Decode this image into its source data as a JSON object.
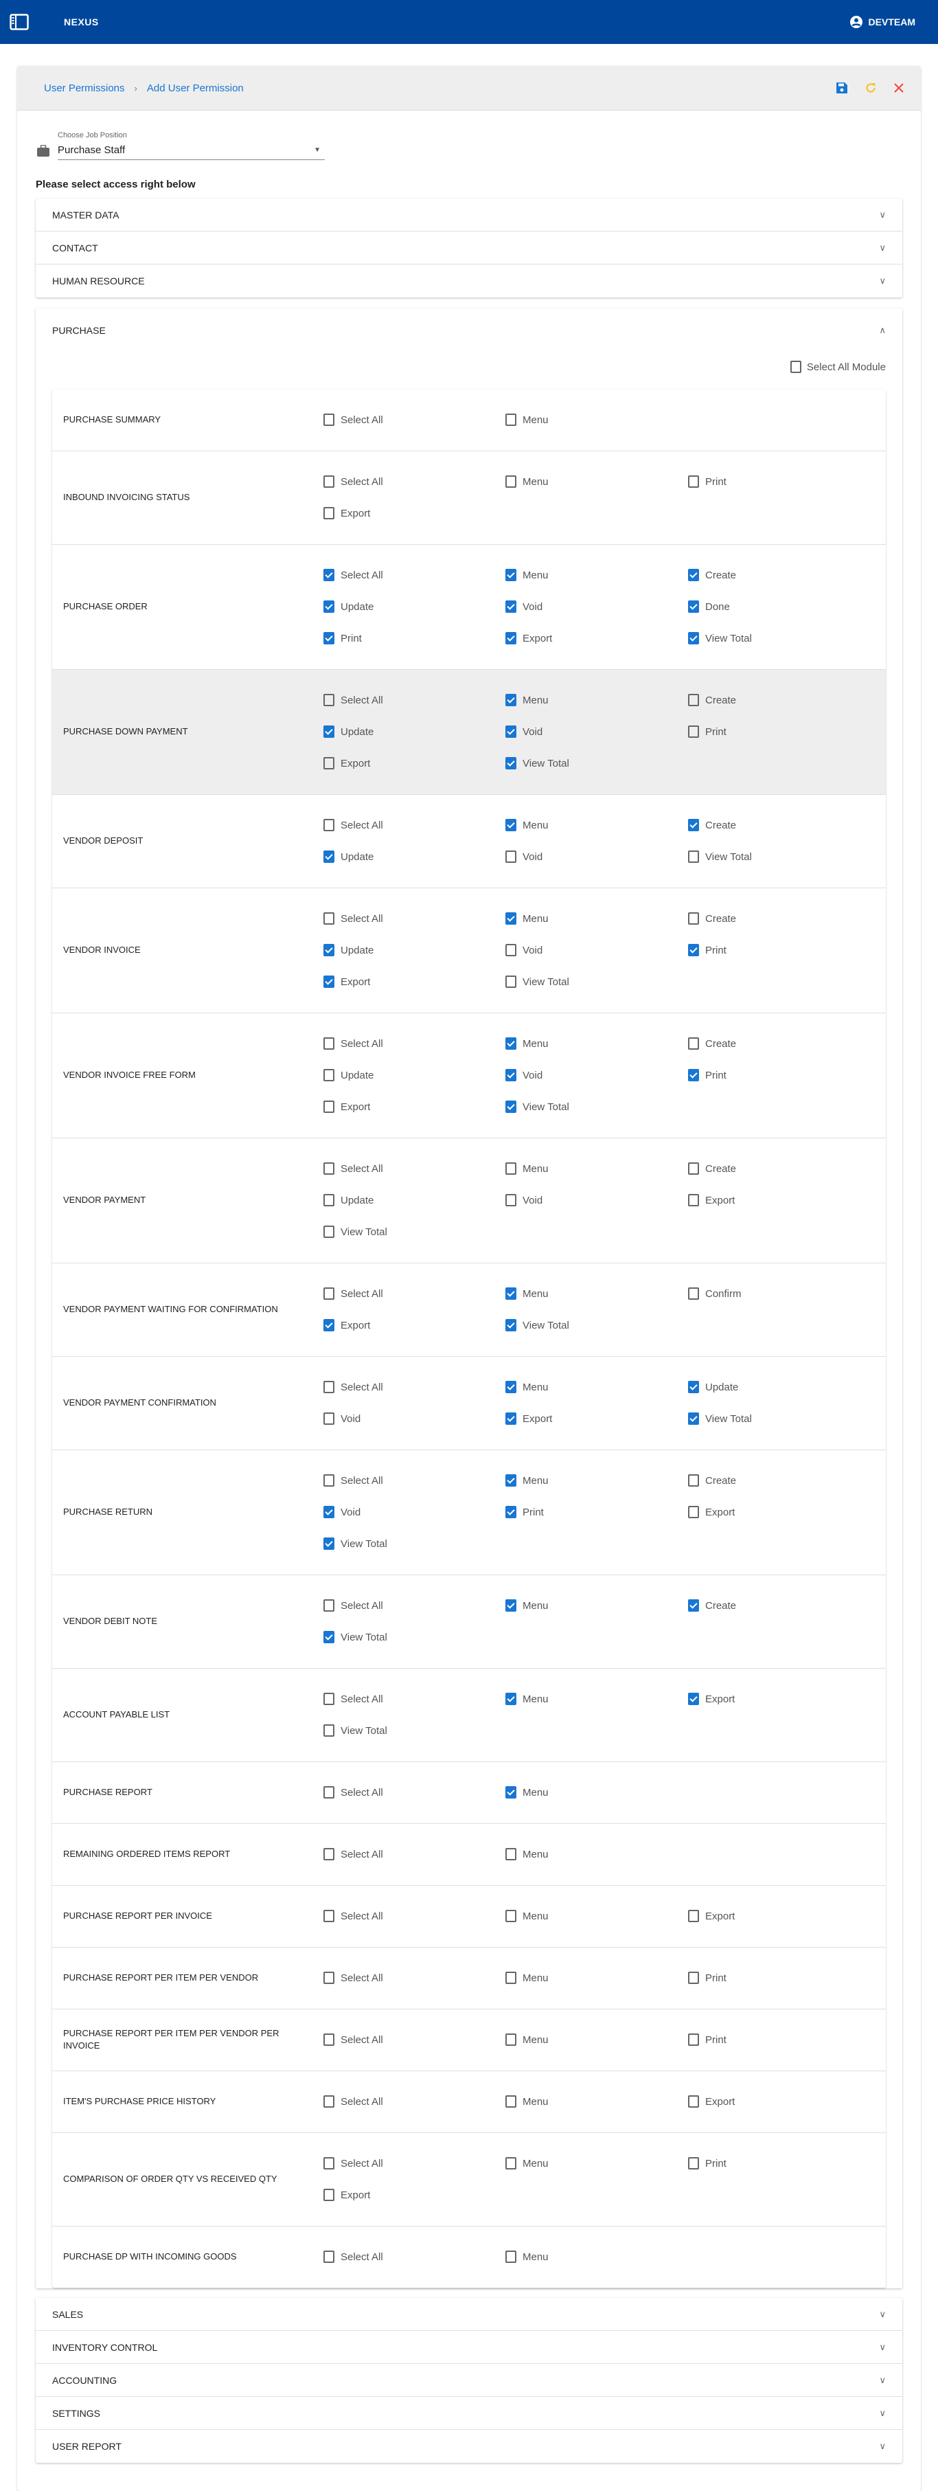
{
  "app": {
    "title": "NEXUS",
    "user": "DEVTEAM"
  },
  "breadcrumb": {
    "parent": "User Permissions",
    "current": "Add User Permission",
    "separator": "›"
  },
  "actions": {
    "save_icon": "save-icon",
    "refresh_icon": "refresh-icon",
    "close_icon": "close-icon",
    "colors": {
      "save": "#1976d2",
      "refresh": "#fbc02d",
      "close": "#f44336"
    }
  },
  "job": {
    "label": "Choose Job Position",
    "value": "Purchase Staff"
  },
  "instructions": "Please select access right below",
  "sections_top": [
    "MASTER DATA",
    "CONTACT",
    "HUMAN RESOURCE"
  ],
  "purchase": {
    "title": "PURCHASE",
    "select_all_module": {
      "label": "Select All Module",
      "checked": false
    },
    "rows": [
      {
        "name": "PURCHASE SUMMARY",
        "perms": [
          [
            "Select All",
            false
          ],
          [
            "Menu",
            false
          ]
        ]
      },
      {
        "name": "INBOUND INVOICING STATUS",
        "perms": [
          [
            "Select All",
            false
          ],
          [
            "Menu",
            false
          ],
          [
            "Print",
            false
          ],
          [
            "Export",
            false
          ]
        ]
      },
      {
        "name": "PURCHASE ORDER",
        "perms": [
          [
            "Select All",
            true
          ],
          [
            "Menu",
            true
          ],
          [
            "Create",
            true
          ],
          [
            "Update",
            true
          ],
          [
            "Void",
            true
          ],
          [
            "Done",
            true
          ],
          [
            "Print",
            true
          ],
          [
            "Export",
            true
          ],
          [
            "View Total",
            true
          ]
        ]
      },
      {
        "name": "PURCHASE DOWN PAYMENT",
        "highlighted": true,
        "perms": [
          [
            "Select All",
            false
          ],
          [
            "Menu",
            true
          ],
          [
            "Create",
            false
          ],
          [
            "Update",
            true
          ],
          [
            "Void",
            true
          ],
          [
            "Print",
            false
          ],
          [
            "Export",
            false
          ],
          [
            "View Total",
            true
          ]
        ]
      },
      {
        "name": "VENDOR DEPOSIT",
        "perms": [
          [
            "Select All",
            false
          ],
          [
            "Menu",
            true
          ],
          [
            "Create",
            true
          ],
          [
            "Update",
            true
          ],
          [
            "Void",
            false
          ],
          [
            "View Total",
            false
          ]
        ]
      },
      {
        "name": "VENDOR INVOICE",
        "perms": [
          [
            "Select All",
            false
          ],
          [
            "Menu",
            true
          ],
          [
            "Create",
            false
          ],
          [
            "Update",
            true
          ],
          [
            "Void",
            false
          ],
          [
            "Print",
            true
          ],
          [
            "Export",
            true
          ],
          [
            "View Total",
            false
          ]
        ]
      },
      {
        "name": "VENDOR INVOICE FREE FORM",
        "perms": [
          [
            "Select All",
            false
          ],
          [
            "Menu",
            true
          ],
          [
            "Create",
            false
          ],
          [
            "Update",
            false
          ],
          [
            "Void",
            true
          ],
          [
            "Print",
            true
          ],
          [
            "Export",
            false
          ],
          [
            "View Total",
            true
          ]
        ]
      },
      {
        "name": "VENDOR PAYMENT",
        "perms": [
          [
            "Select All",
            false
          ],
          [
            "Menu",
            false
          ],
          [
            "Create",
            false
          ],
          [
            "Update",
            false
          ],
          [
            "Void",
            false
          ],
          [
            "Export",
            false
          ],
          [
            "View Total",
            false
          ]
        ]
      },
      {
        "name": "VENDOR PAYMENT WAITING FOR CONFIRMATION",
        "perms": [
          [
            "Select All",
            false
          ],
          [
            "Menu",
            true
          ],
          [
            "Confirm",
            false
          ],
          [
            "Export",
            true
          ],
          [
            "View Total",
            true
          ]
        ]
      },
      {
        "name": "VENDOR PAYMENT CONFIRMATION",
        "perms": [
          [
            "Select All",
            false
          ],
          [
            "Menu",
            true
          ],
          [
            "Update",
            true
          ],
          [
            "Void",
            false
          ],
          [
            "Export",
            true
          ],
          [
            "View Total",
            true
          ]
        ]
      },
      {
        "name": "PURCHASE RETURN",
        "perms": [
          [
            "Select All",
            false
          ],
          [
            "Menu",
            true
          ],
          [
            "Create",
            false
          ],
          [
            "Void",
            true
          ],
          [
            "Print",
            true
          ],
          [
            "Export",
            false
          ],
          [
            "View Total",
            true
          ]
        ]
      },
      {
        "name": "VENDOR DEBIT NOTE",
        "perms": [
          [
            "Select All",
            false
          ],
          [
            "Menu",
            true
          ],
          [
            "Create",
            true
          ],
          [
            "View Total",
            true
          ]
        ]
      },
      {
        "name": "ACCOUNT PAYABLE LIST",
        "perms": [
          [
            "Select All",
            false
          ],
          [
            "Menu",
            true
          ],
          [
            "Export",
            true
          ],
          [
            "View Total",
            false
          ]
        ]
      },
      {
        "name": "PURCHASE REPORT",
        "perms": [
          [
            "Select All",
            false
          ],
          [
            "Menu",
            true
          ]
        ]
      },
      {
        "name": "REMAINING ORDERED ITEMS REPORT",
        "perms": [
          [
            "Select All",
            false
          ],
          [
            "Menu",
            false
          ]
        ]
      },
      {
        "name": "PURCHASE REPORT PER INVOICE",
        "perms": [
          [
            "Select All",
            false
          ],
          [
            "Menu",
            false
          ],
          [
            "Export",
            false
          ]
        ]
      },
      {
        "name": "PURCHASE REPORT PER ITEM PER VENDOR",
        "perms": [
          [
            "Select All",
            false
          ],
          [
            "Menu",
            false
          ],
          [
            "Print",
            false
          ]
        ]
      },
      {
        "name": "PURCHASE REPORT PER ITEM PER VENDOR PER INVOICE",
        "perms": [
          [
            "Select All",
            false
          ],
          [
            "Menu",
            false
          ],
          [
            "Print",
            false
          ]
        ]
      },
      {
        "name": "ITEM'S PURCHASE PRICE HISTORY",
        "perms": [
          [
            "Select All",
            false
          ],
          [
            "Menu",
            false
          ],
          [
            "Export",
            false
          ]
        ]
      },
      {
        "name": "COMPARISON OF ORDER QTY VS RECEIVED QTY",
        "perms": [
          [
            "Select All",
            false
          ],
          [
            "Menu",
            false
          ],
          [
            "Print",
            false
          ],
          [
            "Export",
            false
          ]
        ]
      },
      {
        "name": "PURCHASE DP WITH INCOMING GOODS",
        "perms": [
          [
            "Select All",
            false
          ],
          [
            "Menu",
            false
          ]
        ]
      }
    ]
  },
  "sections_bottom": [
    "SALES",
    "INVENTORY CONTROL",
    "ACCOUNTING",
    "SETTINGS",
    "USER REPORT"
  ]
}
